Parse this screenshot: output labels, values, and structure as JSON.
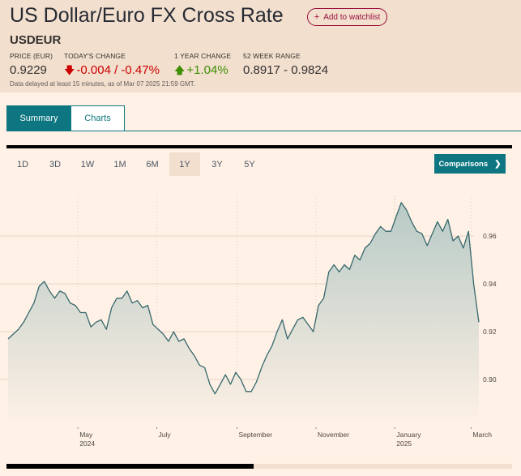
{
  "header": {
    "title": "US Dollar/Euro FX Cross Rate",
    "watchlist_label": "Add to watchlist",
    "symbol": "USDEUR",
    "stats": {
      "price_label": "PRICE (EUR)",
      "price_value": "0.9229",
      "change_label": "TODAY'S CHANGE",
      "change_value": "-0.004 / -0.47%",
      "year_label": "1 YEAR CHANGE",
      "year_value": "+1.04%",
      "range_label": "52 WEEK RANGE",
      "range_value": "0.8917 - 0.9824"
    },
    "delayed_note": "Data delayed at least 15 minutes, as of Mar 07 2025 21:59 GMT."
  },
  "tabs": {
    "summary": "Summary",
    "charts": "Charts"
  },
  "periods": [
    "1D",
    "3D",
    "1W",
    "1M",
    "6M",
    "1Y",
    "3Y",
    "5Y"
  ],
  "active_period": "1Y",
  "comparisons_label": "Comparisons",
  "colors": {
    "accent": "#0d7680",
    "negative": "#cc0000",
    "positive": "#3d8f00",
    "line": "#36686d"
  },
  "chart_data": {
    "type": "area",
    "title": "",
    "xlabel": "",
    "ylabel": "",
    "ylim": [
      0.88,
      0.977
    ],
    "y_ticks": [
      "0.96",
      "0.94",
      "0.92",
      "0.90"
    ],
    "x_ticks": [
      {
        "label": "May",
        "sub": "2024"
      },
      {
        "label": "July",
        "sub": ""
      },
      {
        "label": "September",
        "sub": ""
      },
      {
        "label": "November",
        "sub": ""
      },
      {
        "label": "January",
        "sub": "2025"
      },
      {
        "label": "March",
        "sub": ""
      }
    ],
    "grid": true,
    "x_range": [
      "2024-03-08",
      "2025-03-07"
    ],
    "series": [
      {
        "x": [
          "2024-03-08",
          "2024-03-12",
          "2024-03-16",
          "2024-03-20",
          "2024-03-24",
          "2024-03-28",
          "2024-04-01",
          "2024-04-05",
          "2024-04-09",
          "2024-04-13",
          "2024-04-17",
          "2024-04-21",
          "2024-04-25",
          "2024-04-29",
          "2024-05-03",
          "2024-05-07",
          "2024-05-11",
          "2024-05-15",
          "2024-05-19",
          "2024-05-23",
          "2024-05-27",
          "2024-05-31",
          "2024-06-04",
          "2024-06-08",
          "2024-06-12",
          "2024-06-16",
          "2024-06-20",
          "2024-06-24",
          "2024-06-28",
          "2024-07-02",
          "2024-07-06",
          "2024-07-10",
          "2024-07-14",
          "2024-07-18",
          "2024-07-22",
          "2024-07-26",
          "2024-07-30",
          "2024-08-03",
          "2024-08-07",
          "2024-08-11",
          "2024-08-15",
          "2024-08-19",
          "2024-08-23",
          "2024-08-27",
          "2024-08-31",
          "2024-09-04",
          "2024-09-08",
          "2024-09-12",
          "2024-09-16",
          "2024-09-20",
          "2024-09-24",
          "2024-09-28",
          "2024-10-02",
          "2024-10-06",
          "2024-10-10",
          "2024-10-14",
          "2024-10-18",
          "2024-10-22",
          "2024-10-26",
          "2024-10-30",
          "2024-11-03",
          "2024-11-07",
          "2024-11-11",
          "2024-11-15",
          "2024-11-19",
          "2024-11-23",
          "2024-11-27",
          "2024-12-01",
          "2024-12-05",
          "2024-12-09",
          "2024-12-13",
          "2024-12-17",
          "2024-12-21",
          "2024-12-25",
          "2024-12-29",
          "2025-01-02",
          "2025-01-06",
          "2025-01-10",
          "2025-01-14",
          "2025-01-18",
          "2025-01-22",
          "2025-01-26",
          "2025-01-30",
          "2025-02-03",
          "2025-02-07",
          "2025-02-11",
          "2025-02-15",
          "2025-02-19",
          "2025-02-23",
          "2025-02-27",
          "2025-03-03",
          "2025-03-07"
        ],
        "values": [
          0.917,
          0.919,
          0.921,
          0.924,
          0.928,
          0.932,
          0.939,
          0.941,
          0.937,
          0.934,
          0.937,
          0.936,
          0.932,
          0.931,
          0.928,
          0.928,
          0.922,
          0.924,
          0.925,
          0.921,
          0.93,
          0.934,
          0.934,
          0.937,
          0.932,
          0.933,
          0.93,
          0.931,
          0.923,
          0.921,
          0.919,
          0.916,
          0.92,
          0.916,
          0.917,
          0.913,
          0.91,
          0.906,
          0.905,
          0.898,
          0.894,
          0.898,
          0.902,
          0.898,
          0.903,
          0.9,
          0.895,
          0.895,
          0.899,
          0.905,
          0.91,
          0.914,
          0.92,
          0.925,
          0.917,
          0.921,
          0.925,
          0.926,
          0.923,
          0.92,
          0.931,
          0.934,
          0.945,
          0.948,
          0.945,
          0.948,
          0.946,
          0.952,
          0.95,
          0.955,
          0.957,
          0.961,
          0.964,
          0.962,
          0.962,
          0.968,
          0.974,
          0.971,
          0.966,
          0.962,
          0.961,
          0.956,
          0.961,
          0.966,
          0.962,
          0.967,
          0.958,
          0.96,
          0.955,
          0.962,
          0.94,
          0.924
        ]
      }
    ]
  },
  "scrollbar_position": 0.49
}
